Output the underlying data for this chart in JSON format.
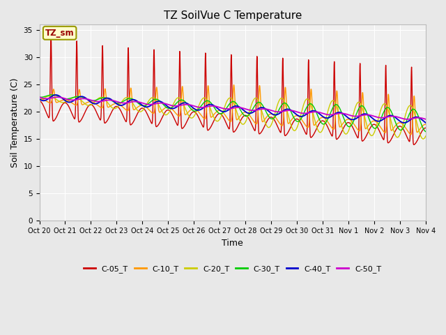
{
  "title": "TZ SoilVue C Temperature",
  "xlabel": "Time",
  "ylabel": "Soil Temperature (C)",
  "ylim": [
    0,
    36
  ],
  "yticks": [
    0,
    5,
    10,
    15,
    20,
    25,
    30,
    35
  ],
  "fig_bg": "#e8e8e8",
  "ax_bg": "#f0f0f0",
  "annotation_text": "TZ_sm",
  "annotation_color": "#990000",
  "annotation_bg": "#ffffcc",
  "annotation_edge": "#999900",
  "series_colors": {
    "C-05_T": "#cc0000",
    "C-10_T": "#ff9900",
    "C-20_T": "#cccc00",
    "C-30_T": "#00cc00",
    "C-40_T": "#0000cc",
    "C-50_T": "#cc00cc"
  },
  "x_tick_labels": [
    "Oct 20",
    "Oct 21",
    "Oct 22",
    "Oct 23",
    "Oct 24",
    "Oct 25",
    "Oct 26",
    "Oct 27",
    "Oct 28",
    "Oct 29",
    "Oct 30",
    "Oct 31",
    "Nov 1",
    "Nov 2",
    "Nov 3",
    "Nov 4"
  ],
  "num_days": 15,
  "line_width": 1.0,
  "grid_color": "#ffffff",
  "legend_fontsize": 8,
  "tick_fontsize": 7,
  "title_fontsize": 11,
  "label_fontsize": 9
}
